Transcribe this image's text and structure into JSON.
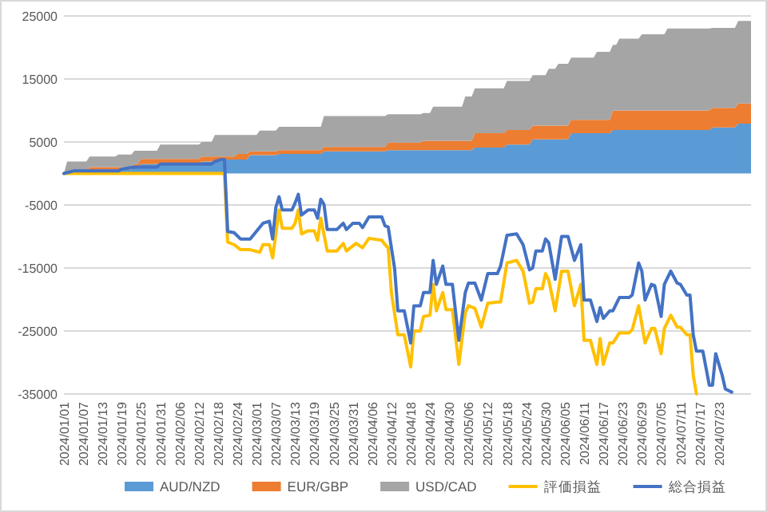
{
  "chart_data": {
    "type": "area",
    "stacked": true,
    "grid": "y",
    "legend": "bottom",
    "xlim": [
      "2024-01-01",
      "2024-08-02"
    ],
    "ylim": [
      -35000,
      25000
    ],
    "yticks": [
      -35000,
      -25000,
      -15000,
      -5000,
      5000,
      15000,
      25000
    ],
    "xticks": [
      {
        "value": "2024-01-01",
        "label": "2024/01/01"
      },
      {
        "value": "2024-01-07",
        "label": "2024/01/07"
      },
      {
        "value": "2024-01-13",
        "label": "2024/01/13"
      },
      {
        "value": "2024-01-19",
        "label": "2024/01/19"
      },
      {
        "value": "2024-01-25",
        "label": "2024/01/25"
      },
      {
        "value": "2024-01-31",
        "label": "2024/01/31"
      },
      {
        "value": "2024-02-06",
        "label": "2024/02/06"
      },
      {
        "value": "2024-02-12",
        "label": "2024/02/12"
      },
      {
        "value": "2024-02-18",
        "label": "2024/02/18"
      },
      {
        "value": "2024-02-24",
        "label": "2024/02/24"
      },
      {
        "value": "2024-03-01",
        "label": "2024/03/01"
      },
      {
        "value": "2024-03-07",
        "label": "2024/03/07"
      },
      {
        "value": "2024-03-13",
        "label": "2024/03/13"
      },
      {
        "value": "2024-03-19",
        "label": "2024/03/19"
      },
      {
        "value": "2024-03-25",
        "label": "2024/03/25"
      },
      {
        "value": "2024-03-31",
        "label": "2024/03/31"
      },
      {
        "value": "2024-04-06",
        "label": "2024/04/06"
      },
      {
        "value": "2024-04-12",
        "label": "2024/04/12"
      },
      {
        "value": "2024-04-18",
        "label": "2024/04/18"
      },
      {
        "value": "2024-04-24",
        "label": "2024/04/24"
      },
      {
        "value": "2024-04-30",
        "label": "2024/04/30"
      },
      {
        "value": "2024-05-06",
        "label": "2024/05/06"
      },
      {
        "value": "2024-05-12",
        "label": "2024/05/12"
      },
      {
        "value": "2024-05-18",
        "label": "2024/05/18"
      },
      {
        "value": "2024-05-24",
        "label": "2024/05/24"
      },
      {
        "value": "2024-05-30",
        "label": "2024/05/30"
      },
      {
        "value": "2024-06-05",
        "label": "2024/06/05"
      },
      {
        "value": "2024-06-11",
        "label": "2024/06/11"
      },
      {
        "value": "2024-06-17",
        "label": "2024/06/17"
      },
      {
        "value": "2024-06-23",
        "label": "2024/06/23"
      },
      {
        "value": "2024-06-29",
        "label": "2024/06/29"
      },
      {
        "value": "2024-07-05",
        "label": "2024/07/05"
      },
      {
        "value": "2024-07-11",
        "label": "2024/07/11"
      },
      {
        "value": "2024-07-17",
        "label": "2024/07/17"
      },
      {
        "value": "2024-07-23",
        "label": "2024/07/23"
      }
    ],
    "series": [
      {
        "name": "AUD/NZD",
        "color": "#5b9bd5",
        "x": [
          "2024-01-01",
          "2024-01-02",
          "2024-01-08",
          "2024-01-09",
          "2024-01-17",
          "2024-01-18",
          "2024-01-22",
          "2024-01-23",
          "2024-01-24",
          "2024-01-25",
          "2024-01-30",
          "2024-01-31",
          "2024-02-12",
          "2024-02-13",
          "2024-02-16",
          "2024-02-17",
          "2024-02-19",
          "2024-02-20",
          "2024-02-23",
          "2024-02-24",
          "2024-02-27",
          "2024-02-28",
          "2024-03-01",
          "2024-03-02",
          "2024-03-07",
          "2024-03-08",
          "2024-03-21",
          "2024-03-22",
          "2024-04-10",
          "2024-04-11",
          "2024-04-21",
          "2024-04-22",
          "2024-04-24",
          "2024-04-25",
          "2024-05-04",
          "2024-05-05",
          "2024-05-07",
          "2024-05-08",
          "2024-05-17",
          "2024-05-18",
          "2024-05-25",
          "2024-05-26",
          "2024-05-30",
          "2024-05-31",
          "2024-06-02",
          "2024-06-03",
          "2024-06-06",
          "2024-06-07",
          "2024-06-14",
          "2024-06-15",
          "2024-06-19",
          "2024-06-20",
          "2024-06-21",
          "2024-06-22",
          "2024-06-28",
          "2024-06-29",
          "2024-07-06",
          "2024-07-07",
          "2024-07-20",
          "2024-07-21",
          "2024-07-28",
          "2024-07-29",
          "2024-08-02"
        ],
        "values": [
          0,
          300,
          300,
          600,
          600,
          600,
          600,
          1000,
          1000,
          1500,
          1500,
          1500,
          1500,
          1900,
          1900,
          1900,
          1900,
          2200,
          2200,
          2200,
          2200,
          2900,
          2900,
          2900,
          2900,
          3100,
          3100,
          3500,
          3500,
          3700,
          3700,
          3700,
          3700,
          3700,
          3700,
          3700,
          3700,
          4100,
          4100,
          4600,
          4600,
          5400,
          5400,
          5400,
          5400,
          5400,
          5400,
          6400,
          6400,
          6400,
          6400,
          6900,
          6900,
          6900,
          6900,
          6900,
          6900,
          6900,
          6900,
          7300,
          7300,
          7900,
          7900
        ]
      },
      {
        "name": "EUR/GBP",
        "color": "#ed7d31",
        "x": [
          "2024-01-01",
          "2024-01-02",
          "2024-01-08",
          "2024-01-09",
          "2024-01-17",
          "2024-01-18",
          "2024-01-22",
          "2024-01-23",
          "2024-01-24",
          "2024-01-25",
          "2024-01-30",
          "2024-01-31",
          "2024-02-12",
          "2024-02-13",
          "2024-02-16",
          "2024-02-17",
          "2024-02-19",
          "2024-02-20",
          "2024-02-23",
          "2024-02-24",
          "2024-02-27",
          "2024-02-28",
          "2024-03-01",
          "2024-03-02",
          "2024-03-07",
          "2024-03-08",
          "2024-03-21",
          "2024-03-22",
          "2024-04-10",
          "2024-04-11",
          "2024-04-21",
          "2024-04-22",
          "2024-04-24",
          "2024-04-25",
          "2024-05-04",
          "2024-05-05",
          "2024-05-07",
          "2024-05-08",
          "2024-05-17",
          "2024-05-18",
          "2024-05-25",
          "2024-05-26",
          "2024-05-30",
          "2024-05-31",
          "2024-06-02",
          "2024-06-03",
          "2024-06-06",
          "2024-06-07",
          "2024-06-14",
          "2024-06-15",
          "2024-06-19",
          "2024-06-20",
          "2024-06-21",
          "2024-06-22",
          "2024-06-28",
          "2024-06-29",
          "2024-07-06",
          "2024-07-07",
          "2024-07-20",
          "2024-07-21",
          "2024-07-28",
          "2024-07-29",
          "2024-08-02"
        ],
        "values": [
          0,
          100,
          100,
          400,
          400,
          400,
          400,
          500,
          500,
          800,
          800,
          800,
          800,
          800,
          800,
          800,
          800,
          500,
          500,
          900,
          900,
          600,
          600,
          600,
          600,
          600,
          600,
          700,
          700,
          1200,
          1200,
          1500,
          1500,
          1500,
          1500,
          1500,
          1500,
          2300,
          2300,
          2300,
          2300,
          2200,
          2200,
          2200,
          2200,
          2200,
          2200,
          2100,
          2100,
          2100,
          2100,
          3100,
          3100,
          3100,
          3100,
          3100,
          3100,
          3100,
          3100,
          3100,
          3100,
          3200,
          3200
        ]
      },
      {
        "name": "USD/CAD",
        "color": "#a5a5a5",
        "x": [
          "2024-01-01",
          "2024-01-02",
          "2024-01-08",
          "2024-01-09",
          "2024-01-17",
          "2024-01-18",
          "2024-01-22",
          "2024-01-23",
          "2024-01-24",
          "2024-01-25",
          "2024-01-30",
          "2024-01-31",
          "2024-02-12",
          "2024-02-13",
          "2024-02-16",
          "2024-02-17",
          "2024-02-19",
          "2024-02-20",
          "2024-02-23",
          "2024-02-24",
          "2024-02-27",
          "2024-02-28",
          "2024-03-01",
          "2024-03-02",
          "2024-03-07",
          "2024-03-08",
          "2024-03-21",
          "2024-03-22",
          "2024-04-10",
          "2024-04-11",
          "2024-04-21",
          "2024-04-22",
          "2024-04-24",
          "2024-04-25",
          "2024-05-04",
          "2024-05-05",
          "2024-05-07",
          "2024-05-08",
          "2024-05-17",
          "2024-05-18",
          "2024-05-25",
          "2024-05-26",
          "2024-05-30",
          "2024-05-31",
          "2024-06-02",
          "2024-06-03",
          "2024-06-06",
          "2024-06-07",
          "2024-06-14",
          "2024-06-15",
          "2024-06-19",
          "2024-06-20",
          "2024-06-21",
          "2024-06-22",
          "2024-06-28",
          "2024-06-29",
          "2024-07-06",
          "2024-07-07",
          "2024-07-20",
          "2024-07-21",
          "2024-07-28",
          "2024-07-29",
          "2024-08-02"
        ],
        "values": [
          0,
          1500,
          1500,
          1700,
          1700,
          2000,
          2000,
          2100,
          2100,
          1300,
          1300,
          2300,
          2300,
          2300,
          2300,
          3400,
          3400,
          3400,
          3400,
          3000,
          3000,
          2600,
          2600,
          3300,
          3300,
          3700,
          3700,
          4900,
          4900,
          4500,
          4500,
          4400,
          4400,
          5400,
          5400,
          7000,
          7000,
          7100,
          7100,
          7800,
          7800,
          8000,
          8000,
          9000,
          9000,
          9800,
          9800,
          9900,
          9900,
          10800,
          10800,
          10400,
          10400,
          11400,
          11400,
          12100,
          12100,
          13000,
          13000,
          12700,
          12700,
          13100,
          13100
        ]
      },
      {
        "name": "評価損益",
        "type": "line",
        "color": "#ffc000",
        "x": [
          "2024-01-01",
          "2024-02-20",
          "2024-02-21",
          "2024-02-23",
          "2024-02-25",
          "2024-02-28",
          "2024-03-02",
          "2024-03-03",
          "2024-03-05",
          "2024-03-06",
          "2024-03-08",
          "2024-03-09",
          "2024-03-12",
          "2024-03-13",
          "2024-03-14",
          "2024-03-15",
          "2024-03-17",
          "2024-03-19",
          "2024-03-20",
          "2024-03-21",
          "2024-03-23",
          "2024-03-26",
          "2024-03-28",
          "2024-03-29",
          "2024-04-01",
          "2024-04-03",
          "2024-04-05",
          "2024-04-09",
          "2024-04-10",
          "2024-04-11",
          "2024-04-12",
          "2024-04-14",
          "2024-04-16",
          "2024-04-18",
          "2024-04-19",
          "2024-04-21",
          "2024-04-22",
          "2024-04-24",
          "2024-04-25",
          "2024-04-26",
          "2024-04-28",
          "2024-04-29",
          "2024-05-01",
          "2024-05-03",
          "2024-05-05",
          "2024-05-06",
          "2024-05-08",
          "2024-05-10",
          "2024-05-12",
          "2024-05-15",
          "2024-05-16",
          "2024-05-18",
          "2024-05-21",
          "2024-05-23",
          "2024-05-25",
          "2024-05-26",
          "2024-05-27",
          "2024-05-29",
          "2024-05-30",
          "2024-05-31",
          "2024-06-02",
          "2024-06-04",
          "2024-06-06",
          "2024-06-08",
          "2024-06-10",
          "2024-06-11",
          "2024-06-13",
          "2024-06-15",
          "2024-06-16",
          "2024-06-17",
          "2024-06-19",
          "2024-06-20",
          "2024-06-22",
          "2024-06-25",
          "2024-06-26",
          "2024-06-28",
          "2024-06-30",
          "2024-07-02",
          "2024-07-03",
          "2024-07-05",
          "2024-07-06",
          "2024-07-08",
          "2024-07-10",
          "2024-07-11",
          "2024-07-13",
          "2024-07-14",
          "2024-07-15",
          "2024-07-16"
        ],
        "values": [
          0,
          0,
          -10900,
          -11300,
          -12100,
          -12100,
          -12500,
          -11300,
          -11300,
          -13400,
          -5800,
          -8700,
          -8700,
          -7900,
          -5800,
          -9600,
          -9100,
          -9100,
          -10600,
          -7100,
          -12300,
          -12300,
          -11100,
          -12300,
          -11100,
          -11800,
          -10300,
          -10600,
          -11300,
          -11800,
          -18900,
          -25600,
          -25600,
          -30700,
          -25000,
          -25000,
          -22700,
          -22500,
          -17600,
          -21800,
          -18900,
          -21600,
          -21600,
          -30300,
          -22100,
          -21000,
          -21400,
          -24400,
          -20600,
          -20400,
          -20400,
          -14200,
          -13800,
          -15500,
          -20600,
          -20400,
          -18300,
          -18300,
          -15900,
          -16900,
          -21800,
          -15500,
          -15500,
          -21000,
          -17600,
          -26500,
          -26500,
          -30300,
          -26200,
          -30300,
          -26900,
          -26900,
          -25300,
          -25300,
          -24800,
          -21000,
          -26900,
          -24600,
          -24600,
          -28600,
          -24600,
          -22500,
          -24400,
          -24400,
          -25600,
          -25600,
          -32000,
          -35000
        ]
      },
      {
        "name": "総合損益",
        "type": "line",
        "color": "#4472c4",
        "x": [
          "2024-01-01",
          "2024-01-04",
          "2024-01-18",
          "2024-01-19",
          "2024-01-23",
          "2024-01-30",
          "2024-01-31",
          "2024-02-16",
          "2024-02-17",
          "2024-02-19",
          "2024-02-20",
          "2024-02-21",
          "2024-02-23",
          "2024-02-25",
          "2024-02-28",
          "2024-03-03",
          "2024-03-05",
          "2024-03-06",
          "2024-03-07",
          "2024-03-08",
          "2024-03-09",
          "2024-03-12",
          "2024-03-13",
          "2024-03-14",
          "2024-03-15",
          "2024-03-17",
          "2024-03-19",
          "2024-03-20",
          "2024-03-21",
          "2024-03-22",
          "2024-03-23",
          "2024-03-26",
          "2024-03-28",
          "2024-03-29",
          "2024-03-31",
          "2024-04-02",
          "2024-04-03",
          "2024-04-05",
          "2024-04-09",
          "2024-04-10",
          "2024-04-11",
          "2024-04-13",
          "2024-04-14",
          "2024-04-16",
          "2024-04-18",
          "2024-04-19",
          "2024-04-21",
          "2024-04-22",
          "2024-04-24",
          "2024-04-25",
          "2024-04-26",
          "2024-04-28",
          "2024-04-29",
          "2024-05-01",
          "2024-05-03",
          "2024-05-05",
          "2024-05-06",
          "2024-05-08",
          "2024-05-10",
          "2024-05-12",
          "2024-05-15",
          "2024-05-16",
          "2024-05-18",
          "2024-05-21",
          "2024-05-23",
          "2024-05-25",
          "2024-05-26",
          "2024-05-27",
          "2024-05-29",
          "2024-05-30",
          "2024-05-31",
          "2024-06-02",
          "2024-06-04",
          "2024-06-06",
          "2024-06-08",
          "2024-06-10",
          "2024-06-11",
          "2024-06-13",
          "2024-06-15",
          "2024-06-16",
          "2024-06-17",
          "2024-06-19",
          "2024-06-20",
          "2024-06-22",
          "2024-06-25",
          "2024-06-26",
          "2024-06-28",
          "2024-06-29",
          "2024-06-30",
          "2024-07-02",
          "2024-07-03",
          "2024-07-05",
          "2024-07-06",
          "2024-07-08",
          "2024-07-10",
          "2024-07-11",
          "2024-07-13",
          "2024-07-14",
          "2024-07-15",
          "2024-07-16",
          "2024-07-18",
          "2024-07-20",
          "2024-07-21",
          "2024-07-22",
          "2024-07-24",
          "2024-07-25",
          "2024-07-27"
        ],
        "values": [
          0,
          400,
          400,
          700,
          1000,
          1000,
          1500,
          1500,
          1900,
          2200,
          2200,
          -9200,
          -9400,
          -10400,
          -10400,
          -7900,
          -7600,
          -10400,
          -5400,
          -3700,
          -5800,
          -5800,
          -4700,
          -3300,
          -6600,
          -5800,
          -5800,
          -7100,
          -4100,
          -4900,
          -8900,
          -8900,
          -7900,
          -8900,
          -7900,
          -7900,
          -8600,
          -6900,
          -6900,
          -8300,
          -8500,
          -15100,
          -21800,
          -21800,
          -26900,
          -21000,
          -21000,
          -18900,
          -18900,
          -13800,
          -17600,
          -14700,
          -17600,
          -17600,
          -26500,
          -18900,
          -17400,
          -17400,
          -20100,
          -15900,
          -15900,
          -14700,
          -9800,
          -9600,
          -11300,
          -15300,
          -15000,
          -12300,
          -12300,
          -10400,
          -11000,
          -16800,
          -10000,
          -10000,
          -13800,
          -11300,
          -20100,
          -20100,
          -23500,
          -21300,
          -23000,
          -21800,
          -21800,
          -19700,
          -19700,
          -19300,
          -14200,
          -15500,
          -20100,
          -17600,
          -17800,
          -22700,
          -17600,
          -15500,
          -17400,
          -17600,
          -19300,
          -19300,
          -25600,
          -28200,
          -28200,
          -33600,
          -33600,
          -28600,
          -32000,
          -34200,
          -34700
        ]
      }
    ]
  }
}
